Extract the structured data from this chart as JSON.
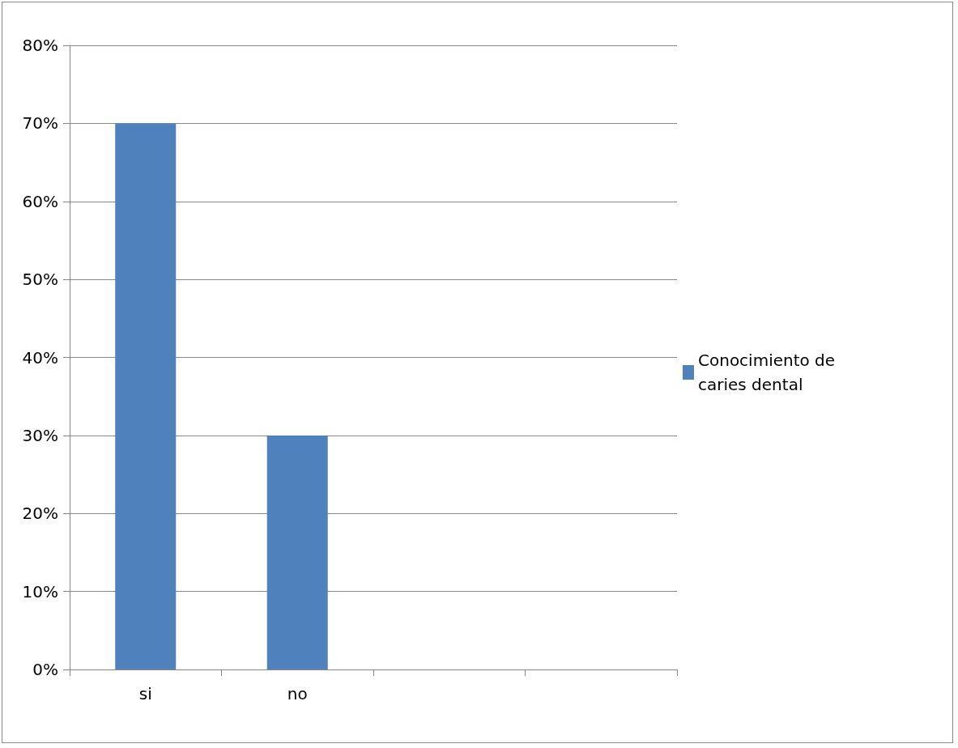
{
  "chart_data": {
    "type": "bar",
    "categories": [
      "si",
      "no",
      null,
      null
    ],
    "series": [
      {
        "name": "Conocimiento de caries dental",
        "color": "#4f81bd",
        "values": [
          70,
          30,
          null,
          null
        ]
      }
    ],
    "ylim": [
      0,
      80
    ],
    "yticks": [
      {
        "value": 0,
        "label": "0%"
      },
      {
        "value": 10,
        "label": "10%"
      },
      {
        "value": 20,
        "label": "20%"
      },
      {
        "value": 30,
        "label": "30%"
      },
      {
        "value": 40,
        "label": "40%"
      },
      {
        "value": 50,
        "label": "50%"
      },
      {
        "value": 60,
        "label": "60%"
      },
      {
        "value": 70,
        "label": "70%"
      },
      {
        "value": 80,
        "label": "80%"
      }
    ],
    "grid": "y",
    "legend": "right"
  }
}
